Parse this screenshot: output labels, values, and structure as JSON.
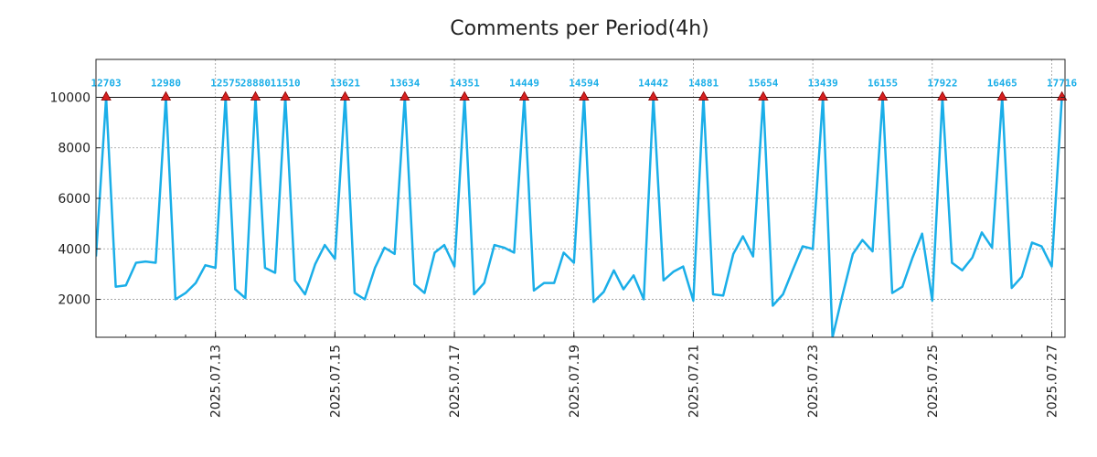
{
  "chart_data": {
    "type": "line",
    "title": "Comments per Period(4h)",
    "xlabel": "",
    "ylabel": "",
    "ylim": [
      500,
      11500
    ],
    "y_ticks": [
      2000,
      4000,
      6000,
      8000,
      10000
    ],
    "y_tick_labels": [
      "2000",
      "4000",
      "6000",
      "8000",
      "10000"
    ],
    "x_range_days": [
      0,
      16
    ],
    "x_ticks": [
      {
        "day": 2,
        "label": "2025.07.13"
      },
      {
        "day": 4,
        "label": "2025.07.15"
      },
      {
        "day": 6,
        "label": "2025.07.17"
      },
      {
        "day": 8,
        "label": "2025.07.19"
      },
      {
        "day": 10,
        "label": "2025.07.21"
      },
      {
        "day": 12,
        "label": "2025.07.23"
      },
      {
        "day": 14,
        "label": "2025.07.25"
      },
      {
        "day": 16,
        "label": "2025.07.27"
      }
    ],
    "x_minor_tick_interval_days": 0.5,
    "clip_value": 10000,
    "threshold_line": 10000,
    "series": [
      {
        "name": "comments",
        "color": "#1aaee8",
        "points": [
          [
            0.0,
            3700
          ],
          [
            0.17,
            10000
          ],
          [
            0.33,
            2500
          ],
          [
            0.5,
            2550
          ],
          [
            0.67,
            3450
          ],
          [
            0.83,
            3500
          ],
          [
            1.0,
            3450
          ],
          [
            1.17,
            10000
          ],
          [
            1.33,
            2000
          ],
          [
            1.5,
            2250
          ],
          [
            1.67,
            2650
          ],
          [
            1.83,
            3350
          ],
          [
            2.0,
            3250
          ],
          [
            2.17,
            10000
          ],
          [
            2.33,
            2400
          ],
          [
            2.5,
            2050
          ],
          [
            2.67,
            10000
          ],
          [
            2.83,
            3250
          ],
          [
            3.0,
            3050
          ],
          [
            3.17,
            10000
          ],
          [
            3.33,
            2750
          ],
          [
            3.5,
            2200
          ],
          [
            3.67,
            3400
          ],
          [
            3.83,
            4150
          ],
          [
            4.0,
            3600
          ],
          [
            4.17,
            10000
          ],
          [
            4.33,
            2250
          ],
          [
            4.5,
            2000
          ],
          [
            4.67,
            3250
          ],
          [
            4.83,
            4050
          ],
          [
            5.0,
            3800
          ],
          [
            5.17,
            10000
          ],
          [
            5.33,
            2600
          ],
          [
            5.5,
            2250
          ],
          [
            5.67,
            3850
          ],
          [
            5.83,
            4150
          ],
          [
            6.0,
            3300
          ],
          [
            6.17,
            10000
          ],
          [
            6.33,
            2200
          ],
          [
            6.5,
            2650
          ],
          [
            6.67,
            4150
          ],
          [
            6.83,
            4050
          ],
          [
            7.0,
            3850
          ],
          [
            7.17,
            10000
          ],
          [
            7.33,
            2350
          ],
          [
            7.5,
            2650
          ],
          [
            7.67,
            2650
          ],
          [
            7.83,
            3850
          ],
          [
            8.0,
            3450
          ],
          [
            8.17,
            10000
          ],
          [
            8.33,
            1900
          ],
          [
            8.5,
            2300
          ],
          [
            8.67,
            3150
          ],
          [
            8.83,
            2400
          ],
          [
            9.0,
            2950
          ],
          [
            9.17,
            2000
          ],
          [
            9.33,
            10000
          ],
          [
            9.5,
            2750
          ],
          [
            9.67,
            3100
          ],
          [
            9.83,
            3300
          ],
          [
            10.0,
            1950
          ],
          [
            10.17,
            10000
          ],
          [
            10.33,
            2200
          ],
          [
            10.5,
            2150
          ],
          [
            10.67,
            3800
          ],
          [
            10.83,
            4500
          ],
          [
            11.0,
            3700
          ],
          [
            11.17,
            10000
          ],
          [
            11.33,
            1750
          ],
          [
            11.5,
            2200
          ],
          [
            11.67,
            3200
          ],
          [
            11.83,
            4100
          ],
          [
            12.0,
            4000
          ],
          [
            12.17,
            10000
          ],
          [
            12.33,
            500
          ],
          [
            12.5,
            2200
          ],
          [
            12.67,
            3800
          ],
          [
            12.83,
            4350
          ],
          [
            13.0,
            3900
          ],
          [
            13.17,
            10000
          ],
          [
            13.33,
            2250
          ],
          [
            13.5,
            2500
          ],
          [
            13.67,
            3650
          ],
          [
            13.83,
            4600
          ],
          [
            14.0,
            1950
          ],
          [
            14.17,
            10000
          ],
          [
            14.33,
            3450
          ],
          [
            14.5,
            3150
          ],
          [
            14.67,
            3650
          ],
          [
            14.83,
            4650
          ],
          [
            15.0,
            4050
          ],
          [
            15.17,
            10000
          ],
          [
            15.33,
            2450
          ],
          [
            15.5,
            2900
          ],
          [
            15.67,
            4250
          ],
          [
            15.83,
            4100
          ],
          [
            16.0,
            3300
          ],
          [
            16.17,
            10000
          ]
        ]
      }
    ],
    "peaks": [
      {
        "day": 0.17,
        "value": 12703,
        "label": "12703"
      },
      {
        "day": 1.17,
        "value": 12980,
        "label": "12980"
      },
      {
        "day": 2.17,
        "value": 12575,
        "label": "12575"
      },
      {
        "day": 2.67,
        "value": 28880,
        "label": "28880"
      },
      {
        "day": 3.17,
        "value": 11510,
        "label": "11510"
      },
      {
        "day": 4.17,
        "value": 13621,
        "label": "13621"
      },
      {
        "day": 5.17,
        "value": 13634,
        "label": "13634"
      },
      {
        "day": 6.17,
        "value": 14351,
        "label": "14351"
      },
      {
        "day": 7.17,
        "value": 14449,
        "label": "14449"
      },
      {
        "day": 8.17,
        "value": 14594,
        "label": "14594"
      },
      {
        "day": 9.33,
        "value": 14442,
        "label": "14442"
      },
      {
        "day": 10.17,
        "value": 14881,
        "label": "14881"
      },
      {
        "day": 11.17,
        "value": 15654,
        "label": "15654"
      },
      {
        "day": 12.17,
        "value": 13439,
        "label": "13439"
      },
      {
        "day": 13.17,
        "value": 16155,
        "label": "16155"
      },
      {
        "day": 14.17,
        "value": 17922,
        "label": "17922"
      },
      {
        "day": 15.17,
        "value": 16465,
        "label": "16465"
      },
      {
        "day": 16.17,
        "value": 17716,
        "label": "17716"
      }
    ],
    "peak_marker_color": "#d62020",
    "peak_label_color": "#1aaee8",
    "grid": true
  }
}
